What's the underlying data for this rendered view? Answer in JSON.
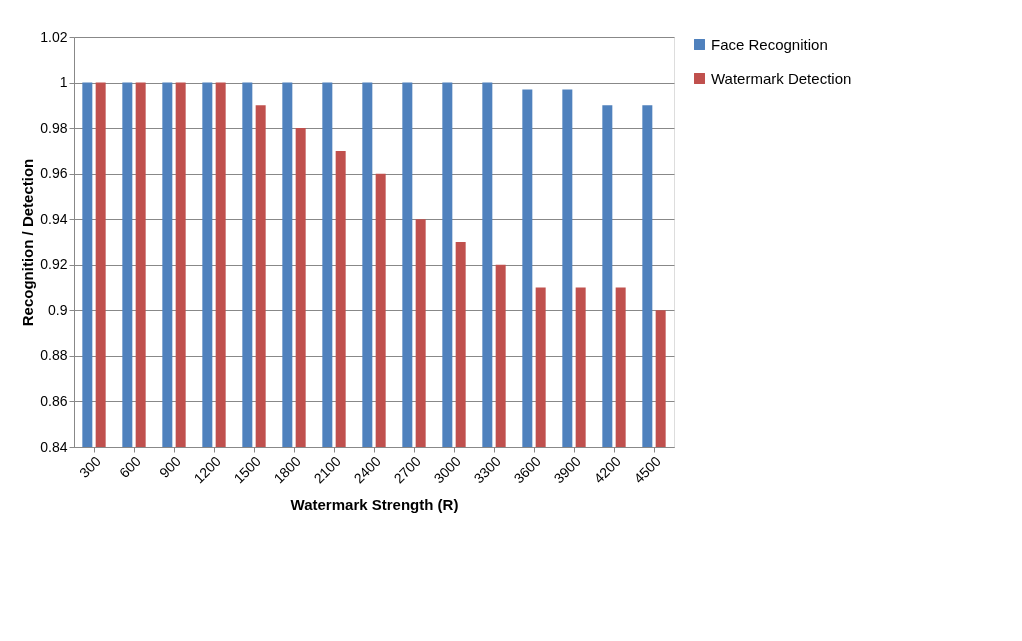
{
  "chart_data": {
    "type": "bar",
    "xlabel": "Watermark Strength (R)",
    "ylabel": "Recognition / Detection",
    "categories": [
      "300",
      "600",
      "900",
      "1200",
      "1500",
      "1800",
      "2100",
      "2400",
      "2700",
      "3000",
      "3300",
      "3600",
      "3900",
      "4200",
      "4500"
    ],
    "series": [
      {
        "name": "Face Recognition",
        "color": "#4f81bd",
        "values": [
          1,
          1,
          1,
          1,
          1,
          1,
          1,
          1,
          1,
          1,
          1,
          0.997,
          0.997,
          0.99,
          0.99
        ]
      },
      {
        "name": "Watermark Detection",
        "color": "#c0504d",
        "values": [
          1,
          1,
          1,
          1,
          0.99,
          0.98,
          0.97,
          0.96,
          0.94,
          0.93,
          0.92,
          0.91,
          0.91,
          0.91,
          0.9
        ]
      }
    ],
    "ylim": [
      0.84,
      1.02
    ],
    "yticks": [
      0.84,
      0.86,
      0.88,
      0.9,
      0.92,
      0.94,
      0.96,
      0.98,
      1,
      1.02
    ],
    "grid": "y",
    "legend": "right"
  }
}
